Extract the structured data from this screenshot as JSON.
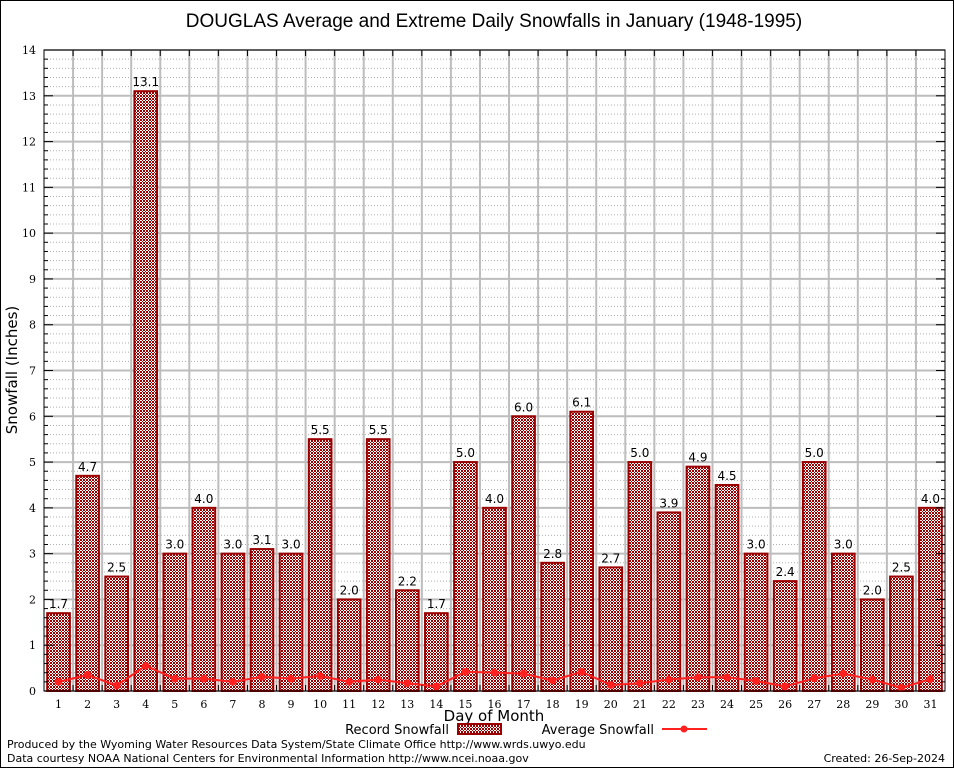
{
  "chart_data": {
    "type": "bar",
    "title": "DOUGLAS Average and Extreme Daily Snowfalls in January (1948-1995)",
    "xlabel": "Day of Month",
    "ylabel": "Snowfall (Inches)",
    "ylim": [
      0,
      14
    ],
    "yticks": [
      0,
      1,
      2,
      3,
      4,
      5,
      6,
      7,
      8,
      9,
      10,
      11,
      12,
      13,
      14
    ],
    "grid": true,
    "legend_position": "bottom-center",
    "categories": [
      "1",
      "2",
      "3",
      "4",
      "5",
      "6",
      "7",
      "8",
      "9",
      "10",
      "11",
      "12",
      "13",
      "14",
      "15",
      "16",
      "17",
      "18",
      "19",
      "20",
      "21",
      "22",
      "23",
      "24",
      "25",
      "26",
      "27",
      "28",
      "29",
      "30",
      "31"
    ],
    "series": [
      {
        "name": "Record Snowfall",
        "type": "bar",
        "color": "#9b0000",
        "values": [
          1.7,
          4.7,
          2.5,
          13.1,
          3.0,
          4.0,
          3.0,
          3.1,
          3.0,
          5.5,
          2.0,
          5.5,
          2.2,
          1.7,
          5.0,
          4.0,
          6.0,
          2.8,
          6.1,
          2.7,
          5.0,
          3.9,
          4.9,
          4.5,
          3.0,
          2.4,
          5.0,
          3.0,
          2.0,
          2.5,
          4.0
        ],
        "labels": [
          "1.7",
          "4.7",
          "2.5",
          "13.1",
          "3.0",
          "4.0",
          "3.0",
          "3.1",
          "3.0",
          "5.5",
          "2.0",
          "5.5",
          "2.2",
          "1.7",
          "5.0",
          "4.0",
          "6.0",
          "2.8",
          "6.1",
          "2.7",
          "5.0",
          "3.9",
          "4.9",
          "4.5",
          "3.0",
          "2.4",
          "5.0",
          "3.0",
          "2.0",
          "2.5",
          "4.0"
        ]
      },
      {
        "name": "Average Snowfall",
        "type": "line",
        "color": "#ff2020",
        "values": [
          0.2,
          0.35,
          0.12,
          0.55,
          0.27,
          0.27,
          0.2,
          0.31,
          0.27,
          0.33,
          0.2,
          0.25,
          0.17,
          0.1,
          0.42,
          0.4,
          0.38,
          0.23,
          0.42,
          0.13,
          0.17,
          0.25,
          0.3,
          0.3,
          0.22,
          0.1,
          0.28,
          0.38,
          0.25,
          0.07,
          0.26
        ]
      }
    ]
  },
  "footer": {
    "line1": "Produced by the Wyoming Water Resources Data System/State Climate Office http://www.wrds.uwyo.edu",
    "line2": "Data courtesy NOAA National Centers for Environmental Information http://www.ncei.noaa.gov",
    "created": "Created: 26-Sep-2024"
  }
}
